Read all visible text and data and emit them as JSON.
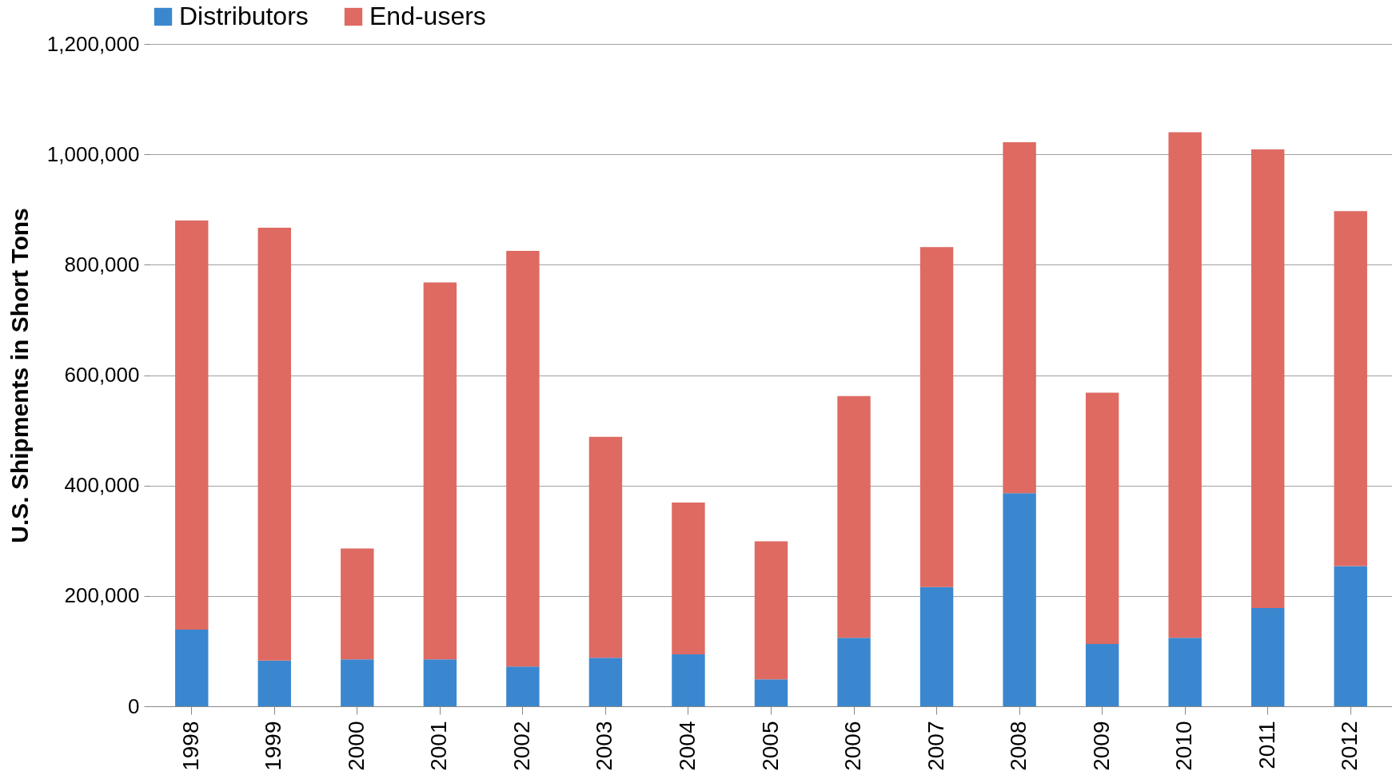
{
  "chart_data": {
    "type": "bar",
    "stacked": true,
    "ylabel": "U.S. Shipments in Short Tons",
    "categories": [
      "1998",
      "1999",
      "2000",
      "2001",
      "2002",
      "2003",
      "2004",
      "2005",
      "2006",
      "2007",
      "2008",
      "2009",
      "2010",
      "2011",
      "2012"
    ],
    "series": [
      {
        "name": "Distributors",
        "color": "#3b87cf",
        "values": [
          139000,
          83000,
          85000,
          85000,
          72000,
          88000,
          94000,
          49000,
          124000,
          216000,
          386000,
          113000,
          124000,
          178000,
          254000
        ]
      },
      {
        "name": "End-users",
        "color": "#de6a62",
        "values": [
          741000,
          784000,
          201000,
          683000,
          753000,
          400000,
          275000,
          250000,
          438000,
          616000,
          636000,
          455000,
          916000,
          831000,
          643000
        ]
      }
    ],
    "ylim": [
      0,
      1200000
    ],
    "yticks": [
      0,
      {
        "value": 200000,
        "label": "200,000"
      },
      {
        "value": 400000,
        "label": "400,000"
      },
      {
        "value": 600000,
        "label": "600,000"
      },
      {
        "value": 800000,
        "label": "800,000"
      },
      {
        "value": 1000000,
        "label": "1,000,000"
      },
      {
        "value": 1200000,
        "label": "1,200,000"
      }
    ],
    "grid": "y",
    "legend": "top"
  }
}
